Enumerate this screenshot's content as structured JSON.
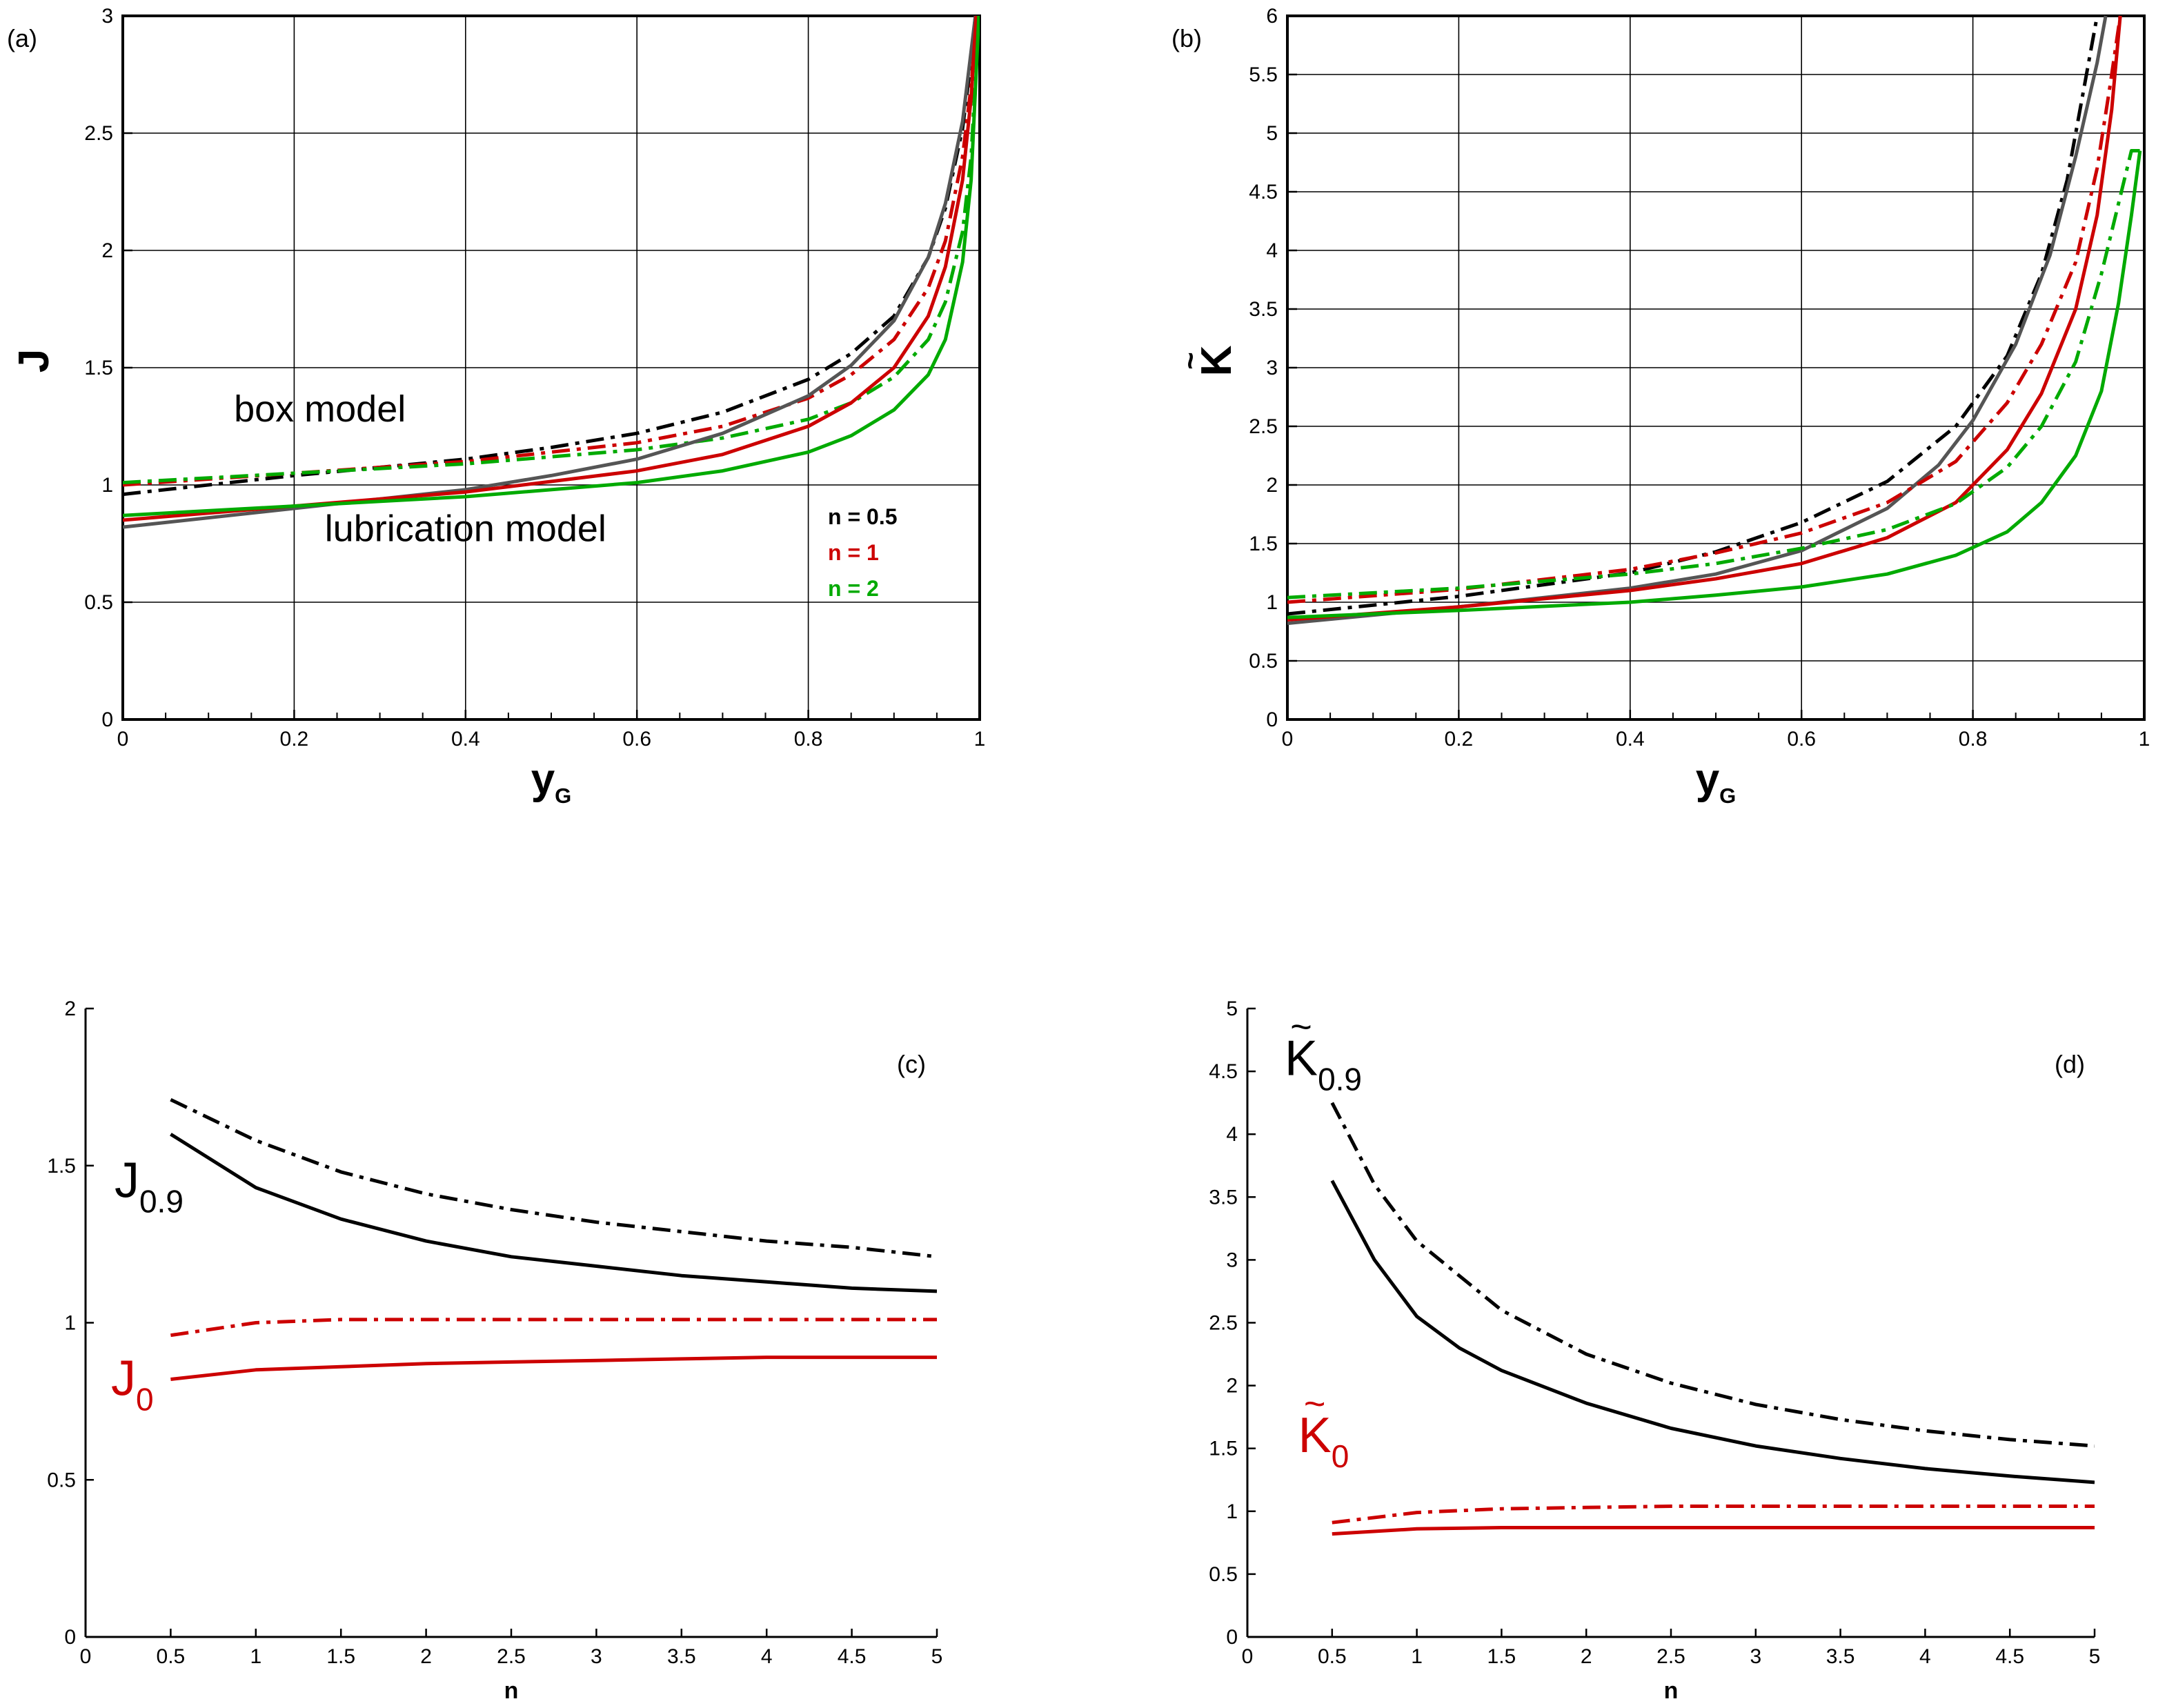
{
  "colors": {
    "black": "#000000",
    "red": "#cc0000",
    "green": "#00aa00",
    "gray": "#555555",
    "grid": "#000000"
  },
  "chart_data": [
    {
      "id": "a",
      "type": "line",
      "panel_label": "(a)",
      "xlabel": "y",
      "xlabel_sub": "G",
      "ylabel": "J",
      "xlim": [
        0,
        1
      ],
      "ylim": [
        0,
        3
      ],
      "xticks": [
        0,
        0.2,
        0.4,
        0.6,
        0.8,
        1
      ],
      "xtick_labels": [
        "0",
        "0.2",
        "0.4",
        "0.6",
        "0.8",
        "1"
      ],
      "yticks": [
        0,
        0.5,
        1,
        1.5,
        2,
        2.5,
        3
      ],
      "ytick_labels": [
        "0",
        "0.5",
        "1",
        "1.5",
        "2",
        "2.5",
        "3"
      ],
      "grid": true,
      "annotations": [
        {
          "text": "box model",
          "x": 0.23,
          "y": 1.27
        },
        {
          "text": "lubrication model",
          "x": 0.4,
          "y": 0.76
        }
      ],
      "legend": [
        {
          "label": "n = 0.5",
          "color_key": "black"
        },
        {
          "label": "n = 1",
          "color_key": "red"
        },
        {
          "label": "n = 2",
          "color_key": "green"
        }
      ],
      "series": [
        {
          "name": "box n=0.5",
          "color_key": "black",
          "style": "dashdot",
          "x": [
            0,
            0.2,
            0.4,
            0.5,
            0.6,
            0.7,
            0.8,
            0.85,
            0.9,
            0.94,
            0.96,
            0.98,
            0.99,
            0.995
          ],
          "y": [
            0.96,
            1.04,
            1.11,
            1.16,
            1.22,
            1.31,
            1.45,
            1.56,
            1.72,
            1.97,
            2.18,
            2.52,
            2.81,
            3.0
          ]
        },
        {
          "name": "box n=1",
          "color_key": "red",
          "style": "dashdot",
          "x": [
            0,
            0.2,
            0.4,
            0.6,
            0.7,
            0.8,
            0.85,
            0.9,
            0.94,
            0.96,
            0.98,
            0.99,
            0.997
          ],
          "y": [
            1.0,
            1.05,
            1.1,
            1.18,
            1.25,
            1.37,
            1.47,
            1.62,
            1.84,
            2.04,
            2.4,
            2.7,
            3.0
          ]
        },
        {
          "name": "box n=2",
          "color_key": "green",
          "style": "dashdot",
          "x": [
            0,
            0.2,
            0.4,
            0.6,
            0.7,
            0.8,
            0.85,
            0.9,
            0.94,
            0.96,
            0.98,
            0.99,
            0.999
          ],
          "y": [
            1.01,
            1.05,
            1.09,
            1.15,
            1.2,
            1.28,
            1.35,
            1.46,
            1.62,
            1.78,
            2.08,
            2.4,
            3.0
          ]
        },
        {
          "name": "lubrication n=0.5",
          "color_key": "gray",
          "style": "solid",
          "x": [
            0,
            0.2,
            0.4,
            0.5,
            0.6,
            0.7,
            0.8,
            0.85,
            0.9,
            0.94,
            0.96,
            0.98,
            0.99,
            0.995
          ],
          "y": [
            0.82,
            0.9,
            0.98,
            1.04,
            1.11,
            1.22,
            1.38,
            1.51,
            1.7,
            1.97,
            2.2,
            2.55,
            2.85,
            3.0
          ]
        },
        {
          "name": "lubrication n=1",
          "color_key": "red",
          "style": "solid",
          "x": [
            0,
            0.2,
            0.4,
            0.6,
            0.7,
            0.8,
            0.85,
            0.9,
            0.94,
            0.96,
            0.98,
            0.99,
            0.996
          ],
          "y": [
            0.85,
            0.91,
            0.97,
            1.06,
            1.13,
            1.25,
            1.35,
            1.5,
            1.72,
            1.93,
            2.3,
            2.65,
            3.0
          ]
        },
        {
          "name": "lubrication n=2",
          "color_key": "green",
          "style": "solid",
          "x": [
            0,
            0.2,
            0.4,
            0.6,
            0.7,
            0.8,
            0.85,
            0.9,
            0.94,
            0.96,
            0.98,
            0.99,
            0.999
          ],
          "y": [
            0.87,
            0.91,
            0.95,
            1.01,
            1.06,
            1.14,
            1.21,
            1.32,
            1.47,
            1.62,
            1.95,
            2.3,
            3.0
          ]
        }
      ]
    },
    {
      "id": "b",
      "type": "line",
      "panel_label": "(b)",
      "xlabel": "y",
      "xlabel_sub": "G",
      "ylabel": "K",
      "ylabel_accent": "~",
      "xlim": [
        0,
        1
      ],
      "ylim": [
        0,
        6
      ],
      "xticks": [
        0,
        0.2,
        0.4,
        0.6,
        0.8,
        1
      ],
      "xtick_labels": [
        "0",
        "0.2",
        "0.4",
        "0.6",
        "0.8",
        "1"
      ],
      "yticks": [
        0,
        0.5,
        1,
        1.5,
        2,
        2.5,
        3,
        3.5,
        4,
        4.5,
        5,
        5.5,
        6
      ],
      "ytick_labels": [
        "0",
        "0.5",
        "1",
        "1.5",
        "2",
        "2.5",
        "3",
        "3.5",
        "4",
        "4.5",
        "5",
        "5.5",
        "6"
      ],
      "grid": true,
      "series": [
        {
          "name": "box n=0.5",
          "color_key": "black",
          "style": "dashdot",
          "x": [
            0,
            0.2,
            0.4,
            0.5,
            0.6,
            0.7,
            0.78,
            0.84,
            0.88,
            0.91,
            0.93,
            0.945
          ],
          "y": [
            0.9,
            1.05,
            1.25,
            1.43,
            1.68,
            2.03,
            2.5,
            3.1,
            3.8,
            4.6,
            5.4,
            6.0
          ]
        },
        {
          "name": "lubrication n=0.5",
          "color_key": "gray",
          "style": "solid",
          "x": [
            0,
            0.2,
            0.4,
            0.5,
            0.6,
            0.7,
            0.76,
            0.8,
            0.85,
            0.89,
            0.92,
            0.945,
            0.955
          ],
          "y": [
            0.82,
            0.96,
            1.12,
            1.24,
            1.44,
            1.8,
            2.17,
            2.55,
            3.2,
            3.96,
            4.8,
            5.6,
            6.0
          ]
        },
        {
          "name": "box n=1",
          "color_key": "red",
          "style": "dashdot",
          "x": [
            0,
            0.2,
            0.4,
            0.5,
            0.6,
            0.7,
            0.78,
            0.84,
            0.88,
            0.92,
            0.945,
            0.96,
            0.972
          ],
          "y": [
            1.0,
            1.11,
            1.28,
            1.42,
            1.59,
            1.85,
            2.2,
            2.7,
            3.2,
            3.9,
            4.7,
            5.4,
            6.0
          ]
        },
        {
          "name": "lubrication n=1",
          "color_key": "red",
          "style": "solid",
          "x": [
            0,
            0.2,
            0.4,
            0.5,
            0.6,
            0.7,
            0.78,
            0.84,
            0.88,
            0.92,
            0.945,
            0.962,
            0.972
          ],
          "y": [
            0.85,
            0.96,
            1.1,
            1.2,
            1.33,
            1.55,
            1.85,
            2.3,
            2.78,
            3.5,
            4.3,
            5.2,
            6.0
          ]
        },
        {
          "name": "box n=2",
          "color_key": "green",
          "style": "dashdot",
          "x": [
            0,
            0.2,
            0.4,
            0.5,
            0.6,
            0.7,
            0.78,
            0.84,
            0.88,
            0.92,
            0.95,
            0.97,
            0.985,
            0.995
          ],
          "y": [
            1.04,
            1.12,
            1.24,
            1.33,
            1.46,
            1.62,
            1.84,
            2.15,
            2.5,
            3.05,
            3.8,
            4.4,
            4.85,
            4.85
          ]
        },
        {
          "name": "lubrication n=2",
          "color_key": "green",
          "style": "solid",
          "x": [
            0,
            0.2,
            0.4,
            0.5,
            0.6,
            0.7,
            0.78,
            0.84,
            0.88,
            0.92,
            0.95,
            0.97,
            0.985,
            0.995
          ],
          "y": [
            0.87,
            0.93,
            1.0,
            1.06,
            1.13,
            1.24,
            1.4,
            1.6,
            1.85,
            2.25,
            2.8,
            3.55,
            4.3,
            4.85
          ]
        }
      ]
    },
    {
      "id": "c",
      "type": "line",
      "panel_label": "(c)",
      "xlabel": "n",
      "ylabel": "",
      "xlim": [
        0,
        5
      ],
      "ylim": [
        0,
        2
      ],
      "xticks": [
        0,
        0.5,
        1,
        1.5,
        2,
        2.5,
        3,
        3.5,
        4,
        4.5,
        5
      ],
      "xtick_labels": [
        "0",
        "0.5",
        "1",
        "1.5",
        "2",
        "2.5",
        "3",
        "3.5",
        "4",
        "4.5",
        "5"
      ],
      "yticks": [
        0,
        0.5,
        1,
        1.5,
        2
      ],
      "ytick_labels": [
        "0",
        "0.5",
        "1",
        "1.5",
        "2"
      ],
      "grid": false,
      "curve_labels": [
        {
          "text": "J",
          "sub": "0.9",
          "color_key": "black",
          "x": 0.17,
          "y": 1.4
        },
        {
          "text": "J",
          "sub": "0",
          "color_key": "red",
          "x": 0.15,
          "y": 0.77
        }
      ],
      "series": [
        {
          "name": "J0.9 box",
          "color_key": "black",
          "style": "dashdot",
          "x": [
            0.5,
            1,
            1.5,
            2,
            2.5,
            3,
            3.5,
            4,
            4.5,
            5
          ],
          "y": [
            1.71,
            1.58,
            1.48,
            1.41,
            1.36,
            1.32,
            1.29,
            1.26,
            1.24,
            1.21
          ]
        },
        {
          "name": "J0.9 lubrication",
          "color_key": "black",
          "style": "solid",
          "x": [
            0.5,
            1,
            1.5,
            2,
            2.5,
            3,
            3.5,
            4,
            4.5,
            5
          ],
          "y": [
            1.6,
            1.43,
            1.33,
            1.26,
            1.21,
            1.18,
            1.15,
            1.13,
            1.11,
            1.1
          ]
        },
        {
          "name": "J0 box",
          "color_key": "red",
          "style": "dashdot",
          "x": [
            0.5,
            1,
            1.5,
            2,
            2.5,
            3,
            3.5,
            4,
            4.5,
            5
          ],
          "y": [
            0.96,
            1.0,
            1.01,
            1.01,
            1.01,
            1.01,
            1.01,
            1.01,
            1.01,
            1.01
          ]
        },
        {
          "name": "J0 lubrication",
          "color_key": "red",
          "style": "solid",
          "x": [
            0.5,
            1,
            1.5,
            2,
            2.5,
            3,
            3.5,
            4,
            4.5,
            5
          ],
          "y": [
            0.82,
            0.85,
            0.86,
            0.87,
            0.875,
            0.88,
            0.885,
            0.89,
            0.89,
            0.89
          ]
        }
      ]
    },
    {
      "id": "d",
      "type": "line",
      "panel_label": "(d)",
      "xlabel": "n",
      "ylabel": "",
      "xlim": [
        0,
        5
      ],
      "ylim": [
        0,
        5
      ],
      "xticks": [
        0,
        0.5,
        1,
        1.5,
        2,
        2.5,
        3,
        3.5,
        4,
        4.5,
        5
      ],
      "xtick_labels": [
        "0",
        "0.5",
        "1",
        "1.5",
        "2",
        "2.5",
        "3",
        "3.5",
        "4",
        "4.5",
        "5"
      ],
      "yticks": [
        0,
        0.5,
        1,
        1.5,
        2,
        2.5,
        3,
        3.5,
        4,
        4.5,
        5
      ],
      "ytick_labels": [
        "0",
        "0.5",
        "1",
        "1.5",
        "2",
        "2.5",
        "3",
        "3.5",
        "4",
        "4.5",
        "5"
      ],
      "grid": false,
      "curve_labels": [
        {
          "text": "K",
          "sub": "0.9",
          "accent": "~",
          "color_key": "black",
          "x": 0.22,
          "y": 4.47
        },
        {
          "text": "K",
          "sub": "0",
          "accent": "~",
          "color_key": "red",
          "x": 0.3,
          "y": 1.47
        }
      ],
      "series": [
        {
          "name": "K0.9 box",
          "color_key": "black",
          "style": "dashdot",
          "x": [
            0.5,
            0.75,
            1,
            1.5,
            2,
            2.5,
            3,
            3.5,
            4,
            4.5,
            5
          ],
          "y": [
            4.25,
            3.6,
            3.15,
            2.6,
            2.25,
            2.02,
            1.85,
            1.73,
            1.64,
            1.57,
            1.52
          ]
        },
        {
          "name": "K0.9 lubrication",
          "color_key": "black",
          "style": "solid",
          "x": [
            0.5,
            0.75,
            1,
            1.25,
            1.5,
            2,
            2.5,
            3,
            3.5,
            4,
            4.5,
            5
          ],
          "y": [
            3.63,
            3.0,
            2.55,
            2.3,
            2.12,
            1.86,
            1.66,
            1.52,
            1.42,
            1.34,
            1.28,
            1.23
          ]
        },
        {
          "name": "K0 box",
          "color_key": "red",
          "style": "dashdot",
          "x": [
            0.5,
            1,
            1.5,
            2,
            2.5,
            3,
            3.5,
            4,
            4.5,
            5
          ],
          "y": [
            0.91,
            0.99,
            1.02,
            1.03,
            1.04,
            1.04,
            1.04,
            1.04,
            1.04,
            1.04
          ]
        },
        {
          "name": "K0 lubrication",
          "color_key": "red",
          "style": "solid",
          "x": [
            0.5,
            1,
            1.5,
            2,
            2.5,
            3,
            3.5,
            4,
            4.5,
            5
          ],
          "y": [
            0.82,
            0.86,
            0.87,
            0.87,
            0.87,
            0.87,
            0.87,
            0.87,
            0.87,
            0.87
          ]
        }
      ]
    }
  ]
}
